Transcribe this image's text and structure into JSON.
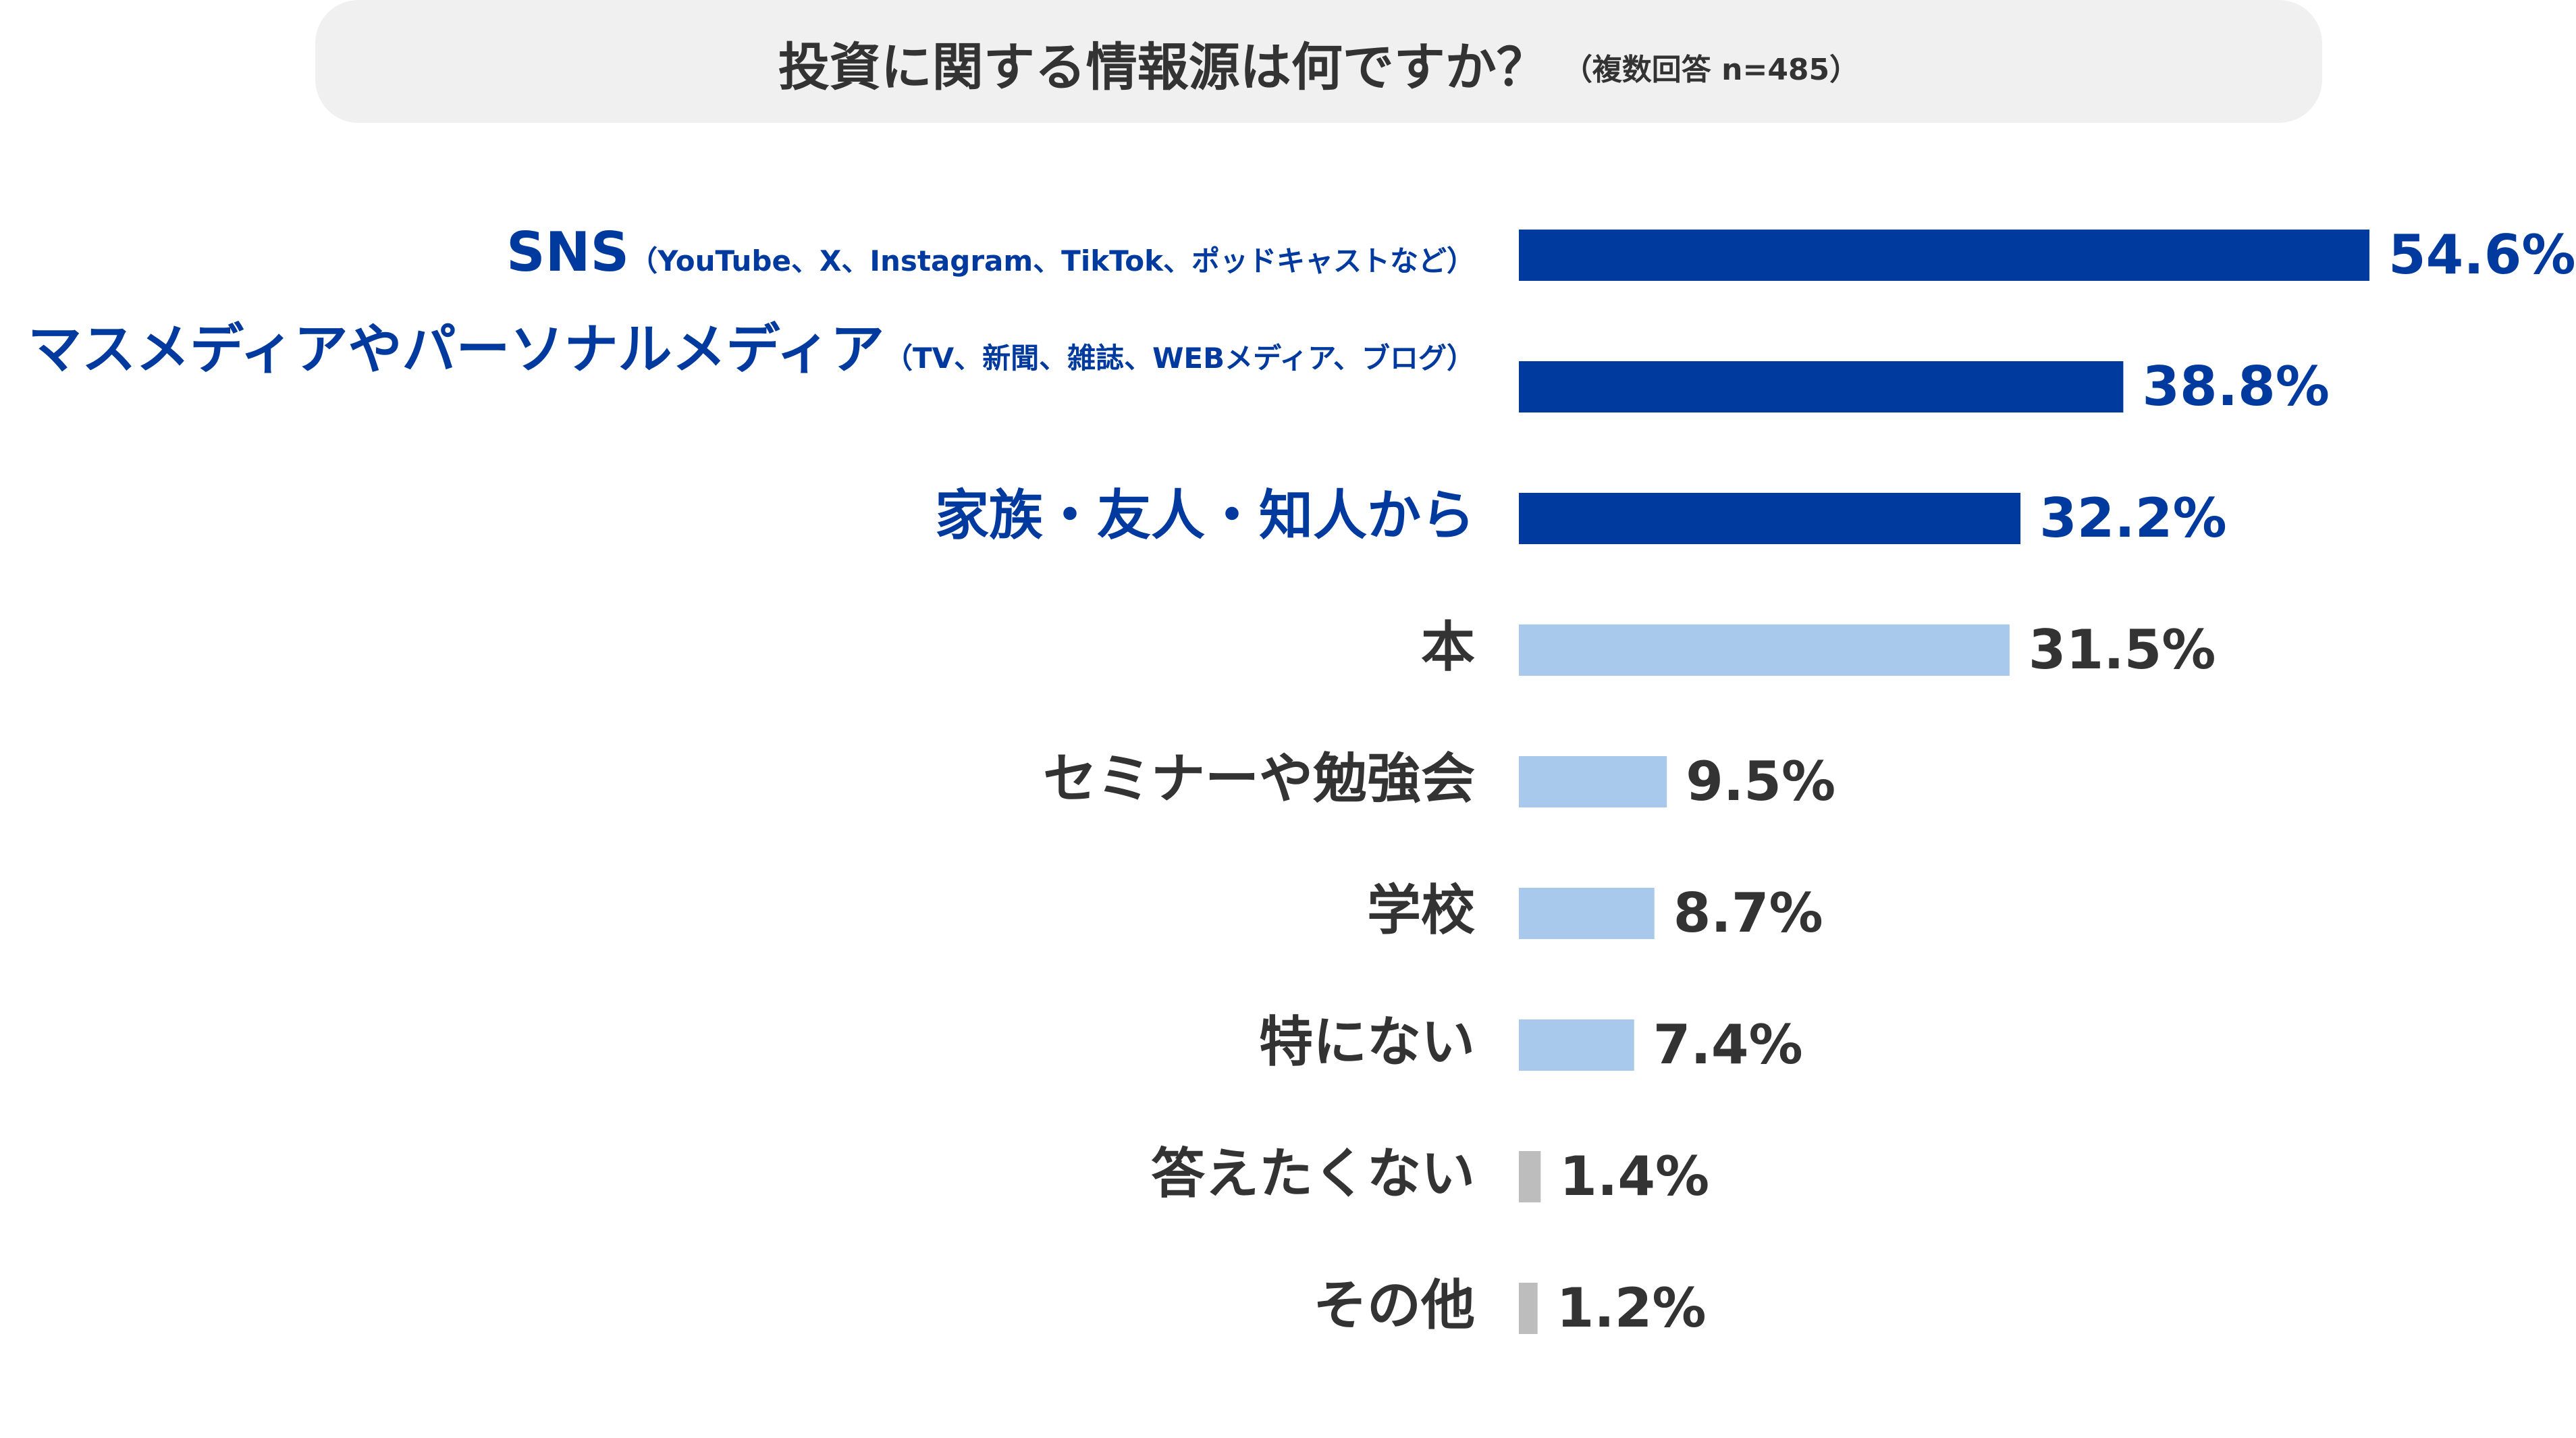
{
  "title": {
    "main": "投資に関する情報源は何ですか？",
    "sub": "（複数回答 n=485）"
  },
  "colors": {
    "title_bg": "#f0f0f0",
    "title_text": "#333333",
    "highlight": "#003a9e",
    "normal": "#a9c9ec",
    "minor": "#bdbdbd",
    "label_dark": "#333333"
  },
  "chart_data": {
    "type": "bar",
    "orientation": "horizontal",
    "unit": "%",
    "xlim": [
      0,
      54.6
    ],
    "grid": false,
    "legend": "none",
    "categories": [
      {
        "label": "SNS",
        "note": "（YouTube、X、Instagram、TikTok、ポッドキャストなど）",
        "value": 54.6,
        "value_label": "54.6%",
        "group": "highlight"
      },
      {
        "label": "マスメディアやパーソナルメディア",
        "note": "（TV、新聞、雑誌、WEBメディア、ブログ）",
        "value": 38.8,
        "value_label": "38.8%",
        "group": "highlight"
      },
      {
        "label": "家族・友人・知人から",
        "note": "",
        "value": 32.2,
        "value_label": "32.2%",
        "group": "highlight"
      },
      {
        "label": "本",
        "note": "",
        "value": 31.5,
        "value_label": "31.5%",
        "group": "normal"
      },
      {
        "label": "セミナーや勉強会",
        "note": "",
        "value": 9.5,
        "value_label": "9.5%",
        "group": "normal"
      },
      {
        "label": "学校",
        "note": "",
        "value": 8.7,
        "value_label": "8.7%",
        "group": "normal"
      },
      {
        "label": "特にない",
        "note": "",
        "value": 7.4,
        "value_label": "7.4%",
        "group": "normal"
      },
      {
        "label": "答えたくない",
        "note": "",
        "value": 1.4,
        "value_label": "1.4%",
        "group": "minor"
      },
      {
        "label": "その他",
        "note": "",
        "value": 1.2,
        "value_label": "1.2%",
        "group": "minor"
      }
    ]
  }
}
